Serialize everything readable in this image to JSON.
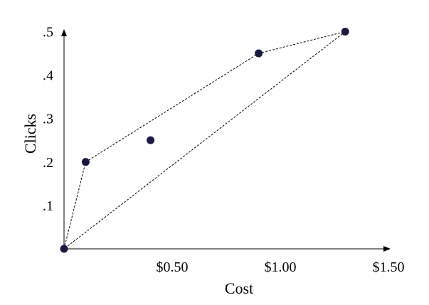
{
  "chart_data": {
    "type": "scatter",
    "title": "",
    "xlabel": "Cost",
    "ylabel": "Clicks",
    "xlim": [
      0,
      1.5
    ],
    "ylim": [
      0,
      0.5
    ],
    "x_ticks": [
      {
        "value": 0.5,
        "label": "$0.50"
      },
      {
        "value": 1.0,
        "label": "$1.00"
      },
      {
        "value": 1.5,
        "label": "$1.50"
      }
    ],
    "y_ticks": [
      {
        "value": 0.1,
        "label": ".1"
      },
      {
        "value": 0.2,
        "label": ".2"
      },
      {
        "value": 0.3,
        "label": ".3"
      },
      {
        "value": 0.4,
        "label": ".4"
      },
      {
        "value": 0.5,
        "label": ".5"
      }
    ],
    "points": [
      {
        "x": 0.0,
        "y": 0.0
      },
      {
        "x": 0.1,
        "y": 0.2
      },
      {
        "x": 0.4,
        "y": 0.25
      },
      {
        "x": 0.9,
        "y": 0.45
      },
      {
        "x": 1.3,
        "y": 0.5
      }
    ],
    "hull_order": [
      0,
      1,
      3,
      4
    ],
    "grid": false,
    "legend": "none",
    "colors": {
      "point": "#1a1a40",
      "line": "#000000",
      "axis": "#000000"
    }
  }
}
